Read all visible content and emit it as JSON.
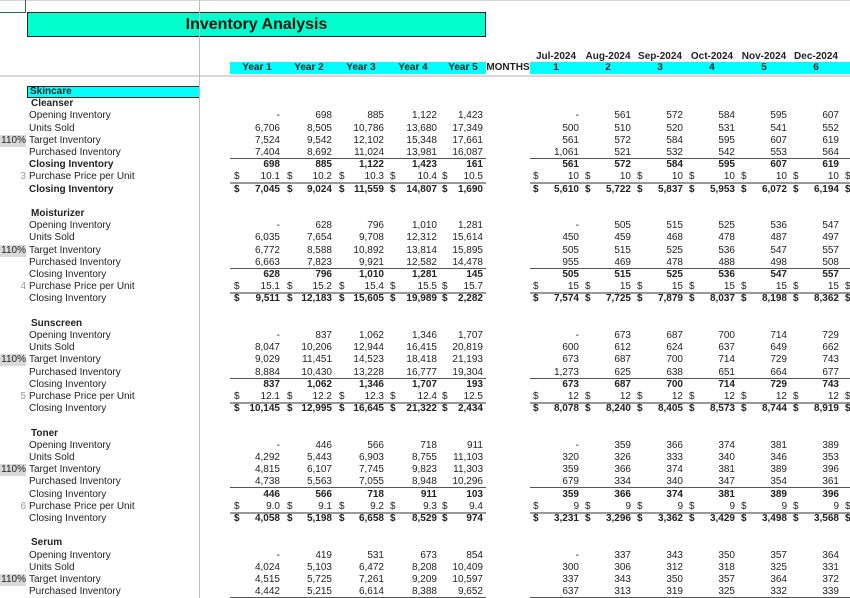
{
  "title": "Inventory Analysis",
  "header": {
    "years": [
      "Year 1",
      "Year 2",
      "Year 3",
      "Year 4",
      "Year 5"
    ],
    "months_label": "MONTHS",
    "months": [
      {
        "date": "Jul-2024",
        "num": "1"
      },
      {
        "date": "Aug-2024",
        "num": "2"
      },
      {
        "date": "Sep-2024",
        "num": "3"
      },
      {
        "date": "Oct-2024",
        "num": "4"
      },
      {
        "date": "Nov-2024",
        "num": "5"
      },
      {
        "date": "Dec-2024",
        "num": "6"
      }
    ]
  },
  "category": "Skincare",
  "currency_symbol": "$",
  "colors": {
    "title_bg": "#00ffcc",
    "header_bg": "#00ffff"
  },
  "products": [
    {
      "name": "Cleanser",
      "rows": [
        {
          "label": "Opening Inventory",
          "years": [
            "-",
            "698",
            "885",
            "1,122",
            "1,423"
          ],
          "months": [
            "-",
            "561",
            "572",
            "584",
            "595",
            "607"
          ]
        },
        {
          "label": "Units Sold",
          "years": [
            "6,706",
            "8,505",
            "10,786",
            "13,680",
            "17,349"
          ],
          "months": [
            "500",
            "510",
            "520",
            "531",
            "541",
            "552"
          ]
        },
        {
          "label": "Target Inventory",
          "pct": "110%",
          "years": [
            "7,524",
            "9,542",
            "12,102",
            "15,348",
            "17,661"
          ],
          "months": [
            "561",
            "572",
            "584",
            "595",
            "607",
            "619"
          ]
        },
        {
          "label": "Purchased Inventory",
          "years": [
            "7,404",
            "8,692",
            "11,024",
            "13,981",
            "16,087"
          ],
          "months": [
            "1,061",
            "521",
            "532",
            "542",
            "553",
            "564"
          ]
        },
        {
          "label": "Closing Inventory",
          "years": [
            "698",
            "885",
            "1,122",
            "1,423",
            "161"
          ],
          "months": [
            "561",
            "572",
            "584",
            "595",
            "607",
            "619"
          ]
        },
        {
          "label": "Purchase Price per Unit",
          "pct": "3",
          "currency": true,
          "years": [
            "10.1",
            "10.2",
            "10.3",
            "10.4",
            "10.5"
          ],
          "months": [
            "10",
            "10",
            "10",
            "10",
            "10",
            "10"
          ]
        },
        {
          "label": "Closing Inventory",
          "currency": true,
          "years": [
            "7,045",
            "9,024",
            "11,559",
            "14,807",
            "1,690"
          ],
          "months": [
            "5,610",
            "5,722",
            "5,837",
            "5,953",
            "6,072",
            "6,194"
          ]
        }
      ]
    },
    {
      "name": "Moisturizer",
      "rows": [
        {
          "label": "Opening Inventory",
          "years": [
            "-",
            "628",
            "796",
            "1,010",
            "1,281"
          ],
          "months": [
            "-",
            "505",
            "515",
            "525",
            "536",
            "547"
          ]
        },
        {
          "label": "Units Sold",
          "years": [
            "6,035",
            "7,654",
            "9,708",
            "12,312",
            "15,614"
          ],
          "months": [
            "450",
            "459",
            "468",
            "478",
            "487",
            "497"
          ]
        },
        {
          "label": "Target Inventory",
          "pct": "110%",
          "years": [
            "6,772",
            "8,588",
            "10,892",
            "13,814",
            "15,895"
          ],
          "months": [
            "505",
            "515",
            "525",
            "536",
            "547",
            "557"
          ]
        },
        {
          "label": "Purchased Inventory",
          "years": [
            "6,663",
            "7,823",
            "9,921",
            "12,582",
            "14,478"
          ],
          "months": [
            "955",
            "469",
            "478",
            "488",
            "498",
            "508"
          ]
        },
        {
          "label": "Closing Inventory",
          "years": [
            "628",
            "796",
            "1,010",
            "1,281",
            "145"
          ],
          "months": [
            "505",
            "515",
            "525",
            "536",
            "547",
            "557"
          ]
        },
        {
          "label": "Purchase Price per Unit",
          "pct": "4",
          "currency": true,
          "years": [
            "15.1",
            "15.2",
            "15.4",
            "15.5",
            "15.7"
          ],
          "months": [
            "15",
            "15",
            "15",
            "15",
            "15",
            "15"
          ]
        },
        {
          "label": "Closing Inventory",
          "currency": true,
          "years": [
            "9,511",
            "12,183",
            "15,605",
            "19,989",
            "2,282"
          ],
          "months": [
            "7,574",
            "7,725",
            "7,879",
            "8,037",
            "8,198",
            "8,362"
          ]
        }
      ]
    },
    {
      "name": "Sunscreen",
      "rows": [
        {
          "label": "Opening Inventory",
          "years": [
            "-",
            "837",
            "1,062",
            "1,346",
            "1,707"
          ],
          "months": [
            "-",
            "673",
            "687",
            "700",
            "714",
            "729"
          ]
        },
        {
          "label": "Units Sold",
          "years": [
            "8,047",
            "10,206",
            "12,944",
            "16,415",
            "20,819"
          ],
          "months": [
            "600",
            "612",
            "624",
            "637",
            "649",
            "662"
          ]
        },
        {
          "label": "Target Inventory",
          "pct": "110%",
          "years": [
            "9,029",
            "11,451",
            "14,523",
            "18,418",
            "21,193"
          ],
          "months": [
            "673",
            "687",
            "700",
            "714",
            "729",
            "743"
          ]
        },
        {
          "label": "Purchased Inventory",
          "years": [
            "8,884",
            "10,430",
            "13,228",
            "16,777",
            "19,304"
          ],
          "months": [
            "1,273",
            "625",
            "638",
            "651",
            "664",
            "677"
          ]
        },
        {
          "label": "Closing Inventory",
          "years": [
            "837",
            "1,062",
            "1,346",
            "1,707",
            "193"
          ],
          "months": [
            "673",
            "687",
            "700",
            "714",
            "729",
            "743"
          ]
        },
        {
          "label": "Purchase Price per Unit",
          "pct": "5",
          "currency": true,
          "years": [
            "12.1",
            "12.2",
            "12.3",
            "12.4",
            "12.5"
          ],
          "months": [
            "12",
            "12",
            "12",
            "12",
            "12",
            "12"
          ]
        },
        {
          "label": "Closing Inventory",
          "currency": true,
          "years": [
            "10,145",
            "12,995",
            "16,645",
            "21,322",
            "2,434"
          ],
          "months": [
            "8,078",
            "8,240",
            "8,405",
            "8,573",
            "8,744",
            "8,919"
          ]
        }
      ]
    },
    {
      "name": "Toner",
      "rows": [
        {
          "label": "Opening Inventory",
          "years": [
            "-",
            "446",
            "566",
            "718",
            "911"
          ],
          "months": [
            "-",
            "359",
            "366",
            "374",
            "381",
            "389"
          ]
        },
        {
          "label": "Units Sold",
          "years": [
            "4,292",
            "5,443",
            "6,903",
            "8,755",
            "11,103"
          ],
          "months": [
            "320",
            "326",
            "333",
            "340",
            "346",
            "353"
          ]
        },
        {
          "label": "Target Inventory",
          "pct": "110%",
          "years": [
            "4,815",
            "6,107",
            "7,745",
            "9,823",
            "11,303"
          ],
          "months": [
            "359",
            "366",
            "374",
            "381",
            "389",
            "396"
          ]
        },
        {
          "label": "Purchased Inventory",
          "years": [
            "4,738",
            "5,563",
            "7,055",
            "8,948",
            "10,296"
          ],
          "months": [
            "679",
            "334",
            "340",
            "347",
            "354",
            "361"
          ]
        },
        {
          "label": "Closing Inventory",
          "years": [
            "446",
            "566",
            "718",
            "911",
            "103"
          ],
          "months": [
            "359",
            "366",
            "374",
            "381",
            "389",
            "396"
          ]
        },
        {
          "label": "Purchase Price per Unit",
          "pct": "6",
          "currency": true,
          "years": [
            "9.0",
            "9.1",
            "9.2",
            "9.3",
            "9.4"
          ],
          "months": [
            "9",
            "9",
            "9",
            "9",
            "9",
            "9"
          ]
        },
        {
          "label": "Closing Inventory",
          "currency": true,
          "years": [
            "4,058",
            "5,198",
            "6,658",
            "8,529",
            "974"
          ],
          "months": [
            "3,231",
            "3,296",
            "3,362",
            "3,429",
            "3,498",
            "3,568"
          ]
        }
      ]
    },
    {
      "name": "Serum",
      "rows": [
        {
          "label": "Opening Inventory",
          "years": [
            "-",
            "419",
            "531",
            "673",
            "854"
          ],
          "months": [
            "-",
            "337",
            "343",
            "350",
            "357",
            "364"
          ]
        },
        {
          "label": "Units Sold",
          "years": [
            "4,024",
            "5,103",
            "6,472",
            "8,208",
            "10,409"
          ],
          "months": [
            "300",
            "306",
            "312",
            "318",
            "325",
            "331"
          ]
        },
        {
          "label": "Target Inventory",
          "pct": "110%",
          "years": [
            "4,515",
            "5,725",
            "7,261",
            "9,209",
            "10,597"
          ],
          "months": [
            "337",
            "343",
            "350",
            "357",
            "364",
            "372"
          ]
        },
        {
          "label": "Purchased Inventory",
          "years": [
            "4,442",
            "5,215",
            "6,614",
            "8,388",
            "9,652"
          ],
          "months": [
            "637",
            "313",
            "319",
            "325",
            "332",
            "339"
          ]
        }
      ]
    }
  ]
}
